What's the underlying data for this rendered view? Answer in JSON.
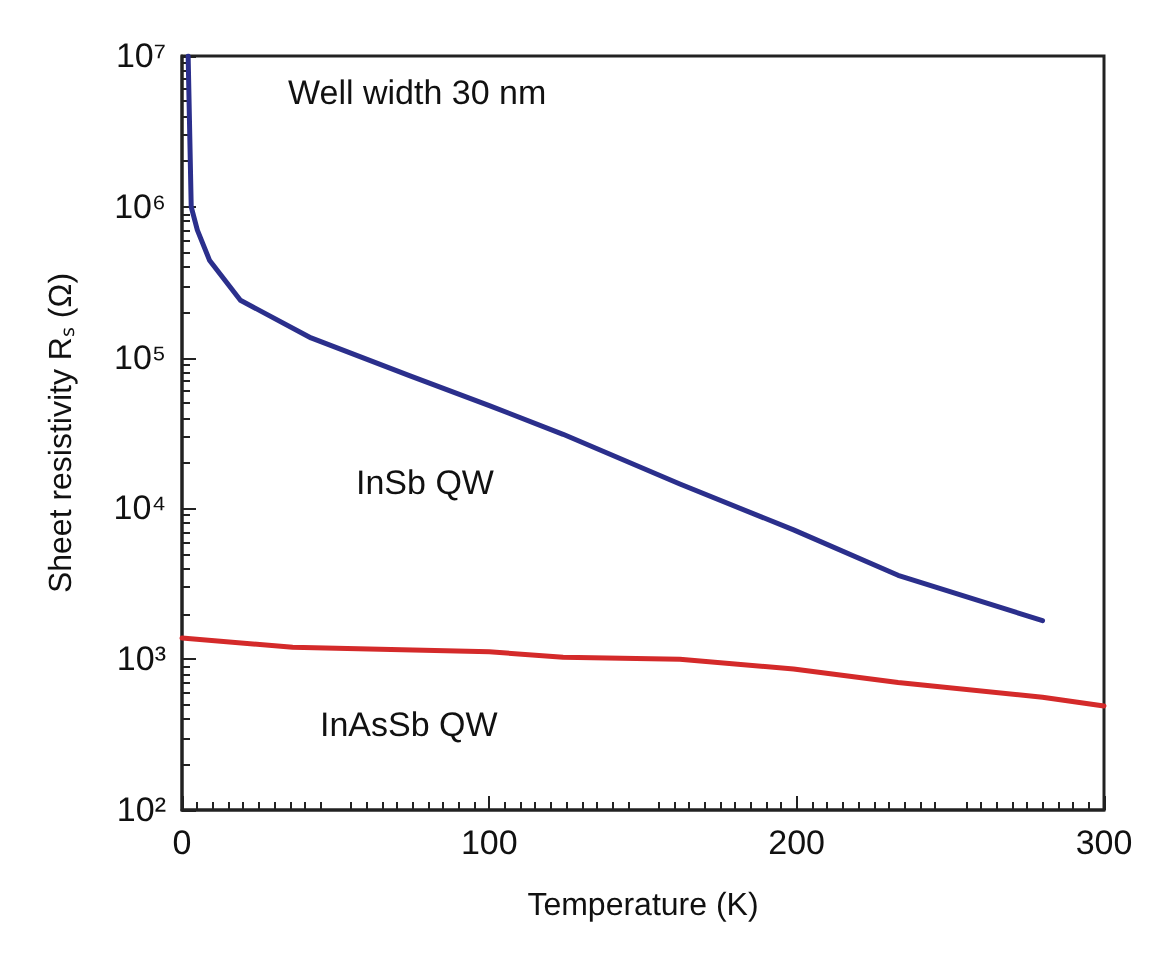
{
  "chart_data": {
    "type": "line",
    "xlabel": "Temperature (K)",
    "ylabel": "Sheet resistivity Rₛ (Ω)",
    "xlim": [
      0,
      300
    ],
    "xticks": [
      0,
      100,
      200,
      300
    ],
    "ylim": [
      100,
      10000000
    ],
    "yticks": [
      {
        "value": 100,
        "label": "10²"
      },
      {
        "value": 1000,
        "label": "10³"
      },
      {
        "value": 10000,
        "label": "10⁴"
      },
      {
        "value": 100000,
        "label": "10⁵"
      },
      {
        "value": 1000000,
        "label": "10⁶"
      },
      {
        "value": 10000000,
        "label": "10⁷"
      }
    ],
    "log": "y",
    "grid": false,
    "marker": "none",
    "line_style": "solid",
    "series": [
      {
        "name": "InSb QW",
        "color": "#2b2f8c",
        "x": [
          2,
          3,
          5,
          9,
          19,
          42,
          74,
          100,
          124,
          162,
          199,
          233,
          280
        ],
        "values": [
          10000000,
          1000000,
          700000,
          440000,
          240000,
          135000,
          76000,
          48000,
          31000,
          14500,
          7200,
          3600,
          1800
        ]
      },
      {
        "name": "InAsSb QW",
        "color": "#d42a2a",
        "x": [
          0,
          36,
          100,
          124,
          162,
          199,
          233,
          280,
          300
        ],
        "values": [
          1380,
          1200,
          1120,
          1030,
          1000,
          860,
          700,
          560,
          490
        ]
      }
    ],
    "annotations": [
      "Well width 30 nm"
    ]
  }
}
